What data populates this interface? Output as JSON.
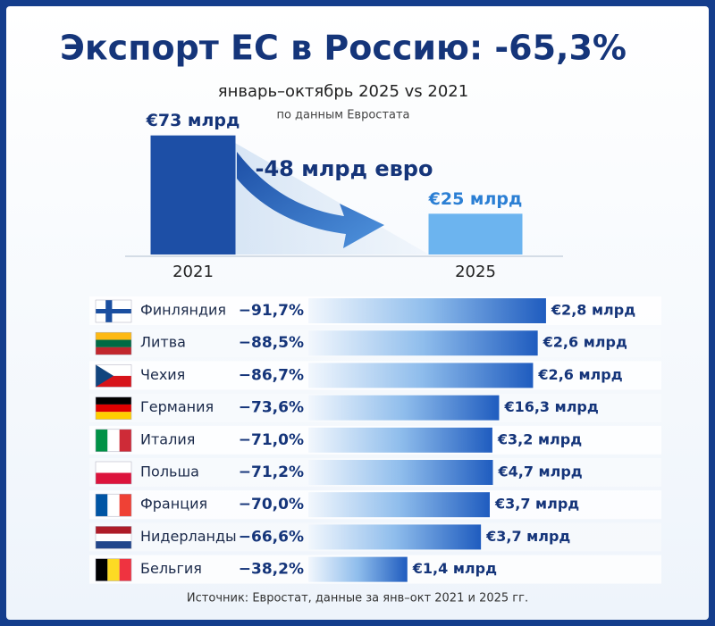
{
  "chart_data": [
    {
      "type": "bar",
      "title": "Экспорт ЕС в Россию: -65,3%",
      "subtitle": "январь–октябрь 2025 vs 2021",
      "note": "по данным Евростата",
      "annotation": "-48 млрд евро",
      "categories": [
        "2021",
        "2025"
      ],
      "values": [
        73,
        25
      ],
      "value_labels": [
        "€73 млрд",
        "€25 млрд"
      ],
      "colors": [
        "#1d4fa6",
        "#6cb4ef"
      ],
      "ylim": [
        0,
        75
      ]
    },
    {
      "type": "hbar",
      "categories": [
        "Финляндия",
        "Литва",
        "Чехия",
        "Германия",
        "Италия",
        "Польша",
        "Франция",
        "Нидерланды",
        "Бельгия"
      ],
      "values": [
        -91.7,
        -88.5,
        -86.7,
        -73.6,
        -71.0,
        -71.2,
        -70.0,
        -66.6,
        -38.2
      ],
      "value_labels": [
        "−91,7%",
        "−88,5%",
        "−86,7%",
        "−73,6%",
        "−71,0%",
        "−71,2%",
        "−70,0%",
        "−66,6%",
        "−38,2%"
      ],
      "export_labels": [
        "€2,8 млрд",
        "€2,6 млрд",
        "€2,6 млрд",
        "€16,3 млрд",
        "€3,2 млрд",
        "€4,7 млрд",
        "€3,7 млрд",
        "€3,7 млрд",
        "€1,4 млрд"
      ],
      "xlim": [
        0,
        -100
      ],
      "source": "Источник: Евростат, данные за янв–окт 2021 и 2025 гг."
    }
  ]
}
